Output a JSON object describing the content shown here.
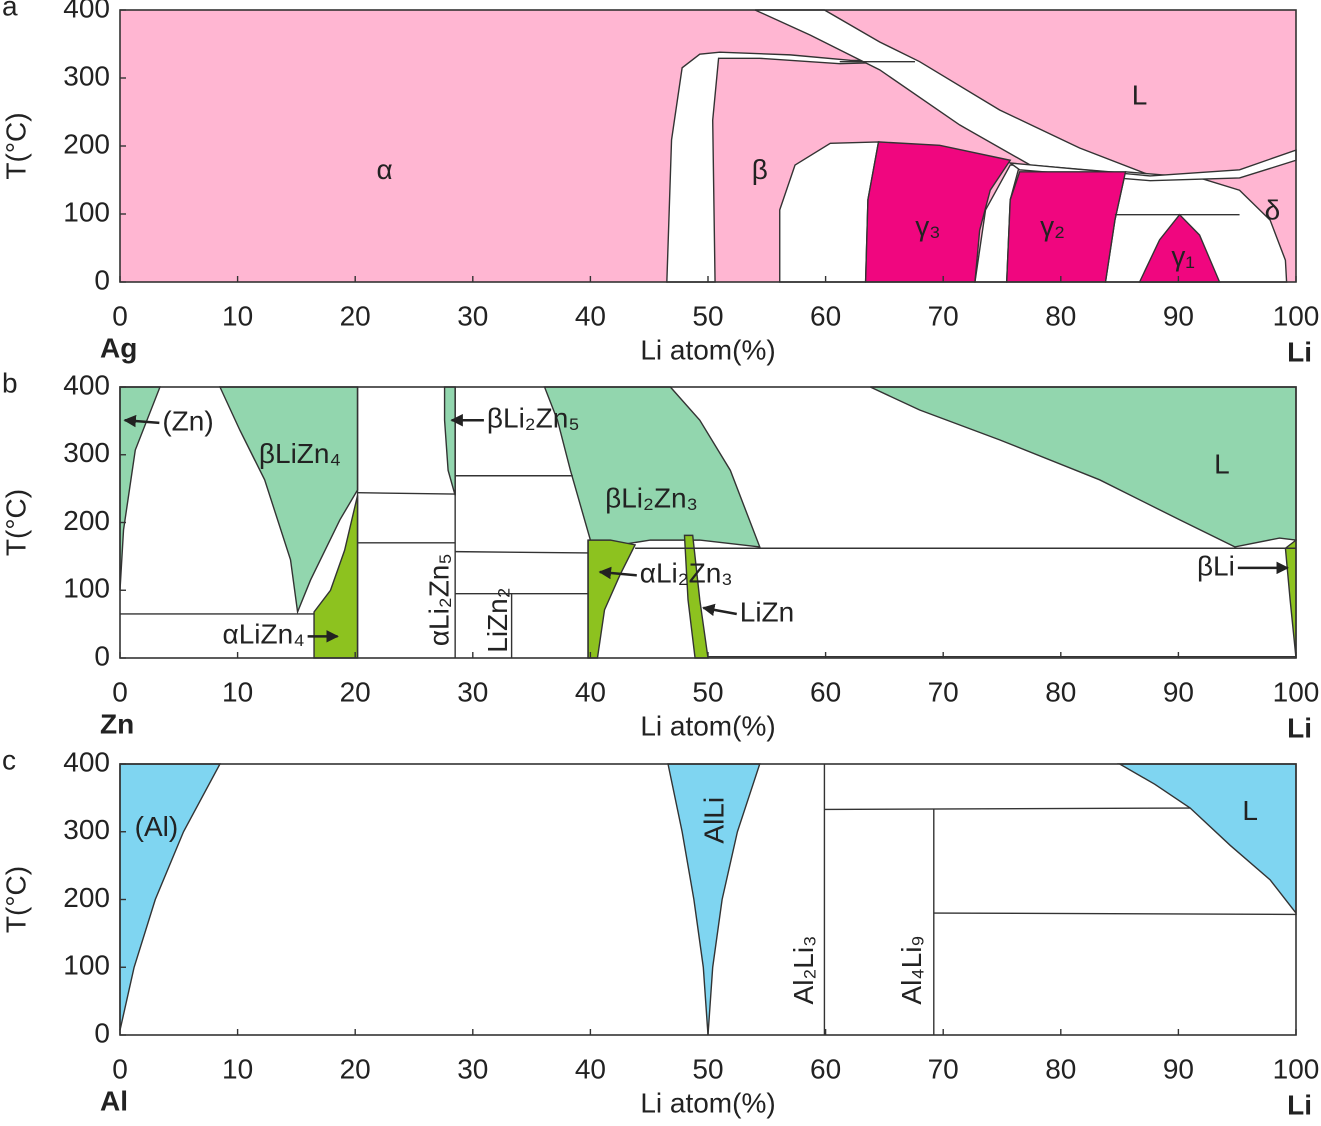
{
  "chart_data": [
    {
      "type": "phase-diagram",
      "panel_label": "a",
      "ylabel": "T(°C)",
      "xlabel": "Li atom(%)",
      "left_label": "Ag",
      "right_label": "Li",
      "xlim": [
        0,
        100
      ],
      "ylim": [
        0,
        400
      ],
      "xticks": [
        0,
        10,
        20,
        30,
        40,
        50,
        60,
        70,
        80,
        90,
        100
      ],
      "yticks": [
        0,
        100,
        200,
        300,
        400
      ],
      "background": "#ffb6d2",
      "regions": [
        {
          "color": "#ffffff",
          "points": [
            [
              46.5,
              0
            ],
            [
              46.9,
              209
            ],
            [
              47.8,
              315
            ],
            [
              49.3,
              335
            ],
            [
              51.0,
              338
            ],
            [
              57.0,
              334
            ],
            [
              62.1,
              326
            ],
            [
              67.6,
              324
            ],
            [
              61.2,
              321
            ],
            [
              54.4,
              329
            ],
            [
              50.9,
              329
            ],
            [
              50.4,
              238
            ],
            [
              50.6,
              0
            ]
          ]
        },
        {
          "color": "#ffffff",
          "points": [
            [
              54.0,
              400
            ],
            [
              59.9,
              400
            ],
            [
              64.6,
              353
            ],
            [
              68.0,
              324
            ],
            [
              74.8,
              253
            ],
            [
              81.6,
              197
            ],
            [
              87.6,
              157
            ],
            [
              77.4,
              172
            ],
            [
              71.4,
              231
            ],
            [
              64.6,
              312
            ],
            [
              58.7,
              363
            ]
          ]
        },
        {
          "color": "#ffffff",
          "points": [
            [
              56.1,
              0
            ],
            [
              56.1,
              106
            ],
            [
              57.4,
              172
            ],
            [
              60.4,
              204
            ],
            [
              64.5,
              206
            ],
            [
              63.6,
              121
            ],
            [
              63.4,
              0
            ]
          ]
        },
        {
          "color": "#ffffff",
          "points": [
            [
              72.7,
              0
            ],
            [
              73.6,
              106
            ],
            [
              75.7,
              172
            ],
            [
              76.5,
              172
            ],
            [
              75.7,
              121
            ],
            [
              75.4,
              0
            ]
          ]
        },
        {
          "color": "#ffffff",
          "points": [
            [
              83.8,
              0
            ],
            [
              84.6,
              91
            ],
            [
              85.5,
              162
            ],
            [
              91.8,
              153
            ],
            [
              95.2,
              135
            ],
            [
              97.8,
              91
            ],
            [
              99.1,
              32
            ],
            [
              99.2,
              0
            ]
          ]
        },
        {
          "color": "#ffffff",
          "points": [
            [
              75.7,
              175
            ],
            [
              87.6,
              156
            ],
            [
              95.2,
              165
            ],
            [
              100,
              194
            ],
            [
              100,
              179
            ],
            [
              95.2,
              153
            ],
            [
              87.6,
              149
            ],
            [
              76.5,
              165
            ]
          ]
        },
        {
          "color": "#f0067f",
          "points": [
            [
              63.4,
              0
            ],
            [
              63.6,
              121
            ],
            [
              64.5,
              206
            ],
            [
              69.7,
              201
            ],
            [
              75.7,
              179
            ],
            [
              74.0,
              135
            ],
            [
              73.1,
              76
            ],
            [
              72.7,
              0
            ]
          ]
        },
        {
          "color": "#f0067f",
          "points": [
            [
              75.4,
              0
            ],
            [
              75.7,
              121
            ],
            [
              76.5,
              162
            ],
            [
              85.5,
              162
            ],
            [
              84.6,
              91
            ],
            [
              83.8,
              0
            ]
          ]
        },
        {
          "color": "#f0067f",
          "points": [
            [
              86.7,
              0
            ],
            [
              88.4,
              62
            ],
            [
              90.1,
              99
            ],
            [
              91.8,
              69
            ],
            [
              93.5,
              0
            ]
          ]
        }
      ],
      "lines": [
        [
          [
            84.6,
            99
          ],
          [
            95.2,
            99
          ]
        ],
        [
          [
            61.2,
            324
          ],
          [
            67.6,
            324
          ]
        ]
      ],
      "annotations": [
        {
          "text": "α",
          "x": 22.5,
          "y": 162
        },
        {
          "text": "β",
          "x": 54.4,
          "y": 162
        },
        {
          "text": "L",
          "x": 86.7,
          "y": 272
        },
        {
          "text": "δ",
          "x": 98.0,
          "y": 103
        },
        {
          "text": "γ₃",
          "x": 68.7,
          "y": 79
        },
        {
          "text": "γ₂",
          "x": 79.3,
          "y": 79
        },
        {
          "text": "γ₁",
          "x": 90.4,
          "y": 35
        }
      ]
    },
    {
      "type": "phase-diagram",
      "panel_label": "b",
      "ylabel": "T(°C)",
      "xlabel": "Li atom(%)",
      "left_label": "Zn",
      "right_label": "Li",
      "xlim": [
        0,
        100
      ],
      "ylim": [
        0,
        400
      ],
      "xticks": [
        0,
        10,
        20,
        30,
        40,
        50,
        60,
        70,
        80,
        90,
        100
      ],
      "yticks": [
        0,
        100,
        200,
        300,
        400
      ],
      "background": "#ffffff",
      "regions": [
        {
          "color": "#92d6ae",
          "points": [
            [
              0,
              400
            ],
            [
              3.4,
              400
            ],
            [
              1.3,
              307
            ],
            [
              0.3,
              189
            ],
            [
              0,
              100
            ]
          ]
        },
        {
          "color": "#92d6ae",
          "points": [
            [
              8.5,
              400
            ],
            [
              20.2,
              400
            ],
            [
              20.2,
              248
            ],
            [
              18.7,
              204
            ],
            [
              16.2,
              115
            ],
            [
              15.1,
              68
            ],
            [
              14.5,
              145
            ],
            [
              12.3,
              263
            ],
            [
              10.2,
              336
            ]
          ]
        },
        {
          "color": "#8dc21f",
          "points": [
            [
              16.5,
              0
            ],
            [
              16.5,
              68
            ],
            [
              17.9,
              100
            ],
            [
              19.1,
              159
            ],
            [
              20.2,
              240
            ],
            [
              20.2,
              0
            ]
          ]
        },
        {
          "color": "#92d6ae",
          "points": [
            [
              27.6,
              400
            ],
            [
              28.5,
              400
            ],
            [
              28.5,
              240
            ],
            [
              27.9,
              277
            ],
            [
              27.6,
              351
            ]
          ]
        },
        {
          "color": "#92d6ae",
          "points": [
            [
              36.1,
              400
            ],
            [
              46.8,
              400
            ],
            [
              49.3,
              351
            ],
            [
              51.9,
              277
            ],
            [
              54.4,
              164
            ],
            [
              49.3,
              174
            ],
            [
              45.1,
              174
            ],
            [
              42.5,
              167
            ],
            [
              40.0,
              174
            ],
            [
              38.3,
              277
            ],
            [
              37.2,
              351
            ]
          ]
        },
        {
          "color": "#8dc21f",
          "points": [
            [
              39.8,
              0
            ],
            [
              39.8,
              174
            ],
            [
              41.7,
              174
            ],
            [
              43.8,
              167
            ],
            [
              42.5,
              122
            ],
            [
              41.2,
              71
            ],
            [
              40.6,
              0
            ]
          ]
        },
        {
          "color": "#8dc21f",
          "points": [
            [
              48.0,
              181
            ],
            [
              48.7,
              181
            ],
            [
              49.3,
              86
            ],
            [
              50.0,
              0
            ],
            [
              48.9,
              0
            ],
            [
              48.3,
              86
            ]
          ]
        },
        {
          "color": "#92d6ae",
          "points": [
            [
              63.8,
              400
            ],
            [
              100,
              400
            ],
            [
              100,
              174
            ],
            [
              98.6,
              177
            ],
            [
              94.8,
              164
            ],
            [
              90.1,
              204
            ],
            [
              83.3,
              263
            ],
            [
              74.8,
              322
            ],
            [
              68.0,
              366
            ]
          ]
        },
        {
          "color": "#8dc21f",
          "points": [
            [
              99.1,
              162
            ],
            [
              100,
              174
            ],
            [
              100,
              0
            ],
            [
              99.5,
              86
            ]
          ]
        }
      ],
      "lines": [
        [
          [
            0,
            65
          ],
          [
            16.5,
            65
          ]
        ],
        [
          [
            20.2,
            0
          ],
          [
            20.2,
            400
          ]
        ],
        [
          [
            28.5,
            0
          ],
          [
            28.5,
            400
          ]
        ],
        [
          [
            20.2,
            244
          ],
          [
            28.5,
            242
          ]
        ],
        [
          [
            20.2,
            170
          ],
          [
            28.5,
            170
          ]
        ],
        [
          [
            28.5,
            269
          ],
          [
            38.5,
            269
          ]
        ],
        [
          [
            28.5,
            157
          ],
          [
            39.8,
            155
          ]
        ],
        [
          [
            28.5,
            95
          ],
          [
            39.8,
            95
          ]
        ],
        [
          [
            33.3,
            0
          ],
          [
            33.3,
            95
          ]
        ],
        [
          [
            39.8,
            0
          ],
          [
            39.8,
            174
          ]
        ],
        [
          [
            43.8,
            162
          ],
          [
            100,
            162
          ]
        ],
        [
          [
            50,
            2
          ],
          [
            100,
            2
          ]
        ]
      ],
      "annotations": [
        {
          "text": "(Zn)",
          "x": 3.6,
          "y": 347,
          "arrow": [
            0.4,
            351
          ]
        },
        {
          "text": "βLiZn₄",
          "x": 15.3,
          "y": 299
        },
        {
          "text": "βLi₂Zn₅",
          "x": 31.2,
          "y": 351,
          "arrow": [
            28.2,
            351
          ]
        },
        {
          "text": "βLi₂Zn₃",
          "x": 45.2,
          "y": 233
        },
        {
          "text": "L",
          "x": 93.7,
          "y": 283
        },
        {
          "text": "αLi₂Zn₃",
          "x": 44.2,
          "y": 122,
          "arrow": [
            40.8,
            127
          ]
        },
        {
          "text": "LiZn",
          "x": 52.7,
          "y": 65,
          "arrow": [
            49.6,
            74
          ]
        },
        {
          "text": "βLi",
          "x": 94.8,
          "y": 133,
          "arrow": [
            99.3,
            133
          ]
        },
        {
          "text": "αLiZn₄",
          "x": 15.7,
          "y": 32,
          "arrow": [
            18.5,
            32
          ]
        },
        {
          "text": "αLi₂Zn₅",
          "x": 27.3,
          "y": 86,
          "vertical": true
        },
        {
          "text": "LiZn₂",
          "x": 32.3,
          "y": 56,
          "vertical": true
        }
      ]
    },
    {
      "type": "phase-diagram",
      "panel_label": "c",
      "ylabel": "T(°C)",
      "xlabel": "Li atom(%)",
      "left_label": "Al",
      "right_label": "Li",
      "xlim": [
        0,
        100
      ],
      "ylim": [
        0,
        400
      ],
      "xticks": [
        0,
        10,
        20,
        30,
        40,
        50,
        60,
        70,
        80,
        90,
        100
      ],
      "yticks": [
        0,
        100,
        200,
        300,
        400
      ],
      "background": "#ffffff",
      "regions": [
        {
          "color": "#7fd5f1",
          "points": [
            [
              0,
              400
            ],
            [
              8.5,
              400
            ],
            [
              5.4,
              300
            ],
            [
              3.0,
              200
            ],
            [
              1.2,
              100
            ],
            [
              0,
              7
            ]
          ]
        },
        {
          "color": "#7fd5f1",
          "points": [
            [
              46.6,
              400
            ],
            [
              54.4,
              400
            ],
            [
              52.5,
              300
            ],
            [
              51.2,
              200
            ],
            [
              50.4,
              100
            ],
            [
              50,
              0
            ],
            [
              49.6,
              100
            ],
            [
              48.8,
              200
            ],
            [
              47.8,
              300
            ]
          ]
        },
        {
          "color": "#7fd5f1",
          "points": [
            [
              85.0,
              400
            ],
            [
              100,
              400
            ],
            [
              100,
              180
            ],
            [
              97.8,
              229
            ],
            [
              94.4,
              280
            ],
            [
              91.0,
              335
            ],
            [
              88,
              370
            ]
          ]
        }
      ],
      "lines": [
        [
          [
            59.9,
            0
          ],
          [
            59.9,
            400
          ]
        ],
        [
          [
            59.9,
            333
          ],
          [
            91.0,
            335
          ]
        ],
        [
          [
            69.2,
            0
          ],
          [
            69.2,
            333
          ]
        ],
        [
          [
            69.2,
            180
          ],
          [
            100,
            178
          ]
        ]
      ],
      "annotations": [
        {
          "text": "(Al)",
          "x": 3.1,
          "y": 305
        },
        {
          "text": "AlLi",
          "x": 50.7,
          "y": 317,
          "vertical": true
        },
        {
          "text": "L",
          "x": 96.1,
          "y": 328
        },
        {
          "text": "Al₂Li₃",
          "x": 58.3,
          "y": 96,
          "vertical": true
        },
        {
          "text": "Al₄Li₉",
          "x": 67.5,
          "y": 96,
          "vertical": true
        }
      ]
    }
  ]
}
